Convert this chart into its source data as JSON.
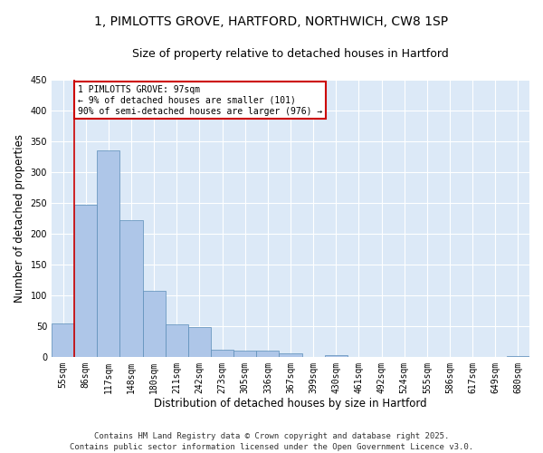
{
  "title_line1": "1, PIMLOTTS GROVE, HARTFORD, NORTHWICH, CW8 1SP",
  "title_line2": "Size of property relative to detached houses in Hartford",
  "xlabel": "Distribution of detached houses by size in Hartford",
  "ylabel": "Number of detached properties",
  "footer": "Contains HM Land Registry data © Crown copyright and database right 2025.\nContains public sector information licensed under the Open Government Licence v3.0.",
  "bin_labels": [
    "55sqm",
    "86sqm",
    "117sqm",
    "148sqm",
    "180sqm",
    "211sqm",
    "242sqm",
    "273sqm",
    "305sqm",
    "336sqm",
    "367sqm",
    "399sqm",
    "430sqm",
    "461sqm",
    "492sqm",
    "524sqm",
    "555sqm",
    "586sqm",
    "617sqm",
    "649sqm",
    "680sqm"
  ],
  "bar_values": [
    54,
    247,
    335,
    222,
    107,
    53,
    48,
    11,
    10,
    10,
    6,
    0,
    2,
    0,
    0,
    0,
    0,
    0,
    0,
    0,
    1
  ],
  "bar_color": "#aec6e8",
  "bar_edge_color": "#5b8db8",
  "annotation_box_color": "#cc0000",
  "annotation_text_line1": "1 PIMLOTTS GROVE: 97sqm",
  "annotation_text_line2": "← 9% of detached houses are smaller (101)",
  "annotation_text_line3": "90% of semi-detached houses are larger (976) →",
  "property_line_color": "#cc0000",
  "property_line_bin": 1,
  "ylim": [
    0,
    450
  ],
  "yticks": [
    0,
    50,
    100,
    150,
    200,
    250,
    300,
    350,
    400,
    450
  ],
  "background_color": "#dce9f7",
  "grid_color": "#ffffff",
  "title_fontsize": 10,
  "subtitle_fontsize": 9,
  "axis_label_fontsize": 8.5,
  "tick_label_fontsize": 7,
  "annotation_fontsize": 7,
  "footer_fontsize": 6.5
}
